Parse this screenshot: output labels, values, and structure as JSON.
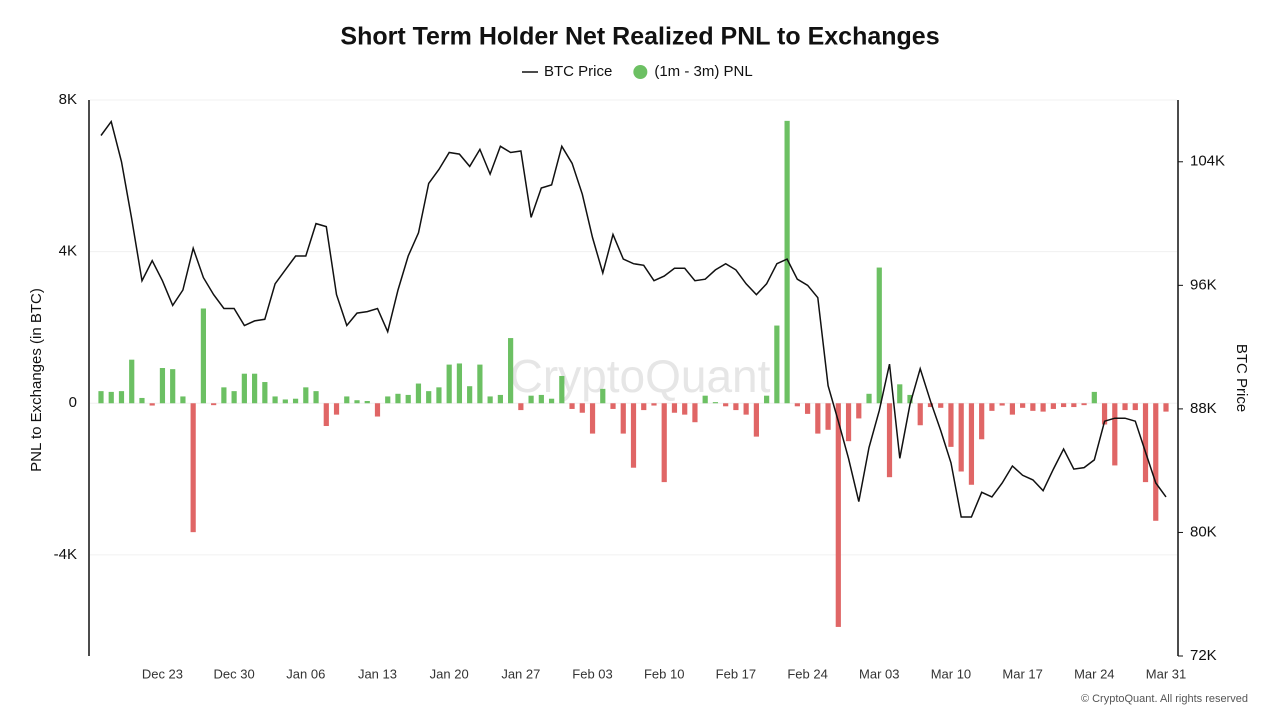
{
  "chart_data": {
    "type": "bar",
    "title": "Short Term Holder Net Realized PNL to Exchanges",
    "y_label": "PNL to Exchanges (in BTC)",
    "y2_label": "BTC Price",
    "watermark": "CryptoQuant",
    "footer": "© CryptoQuant. All rights reserved",
    "grid": true,
    "categories": [
      null,
      null,
      null,
      null,
      null,
      null,
      "Dec 23",
      null,
      null,
      null,
      null,
      null,
      null,
      "Dec 30",
      null,
      null,
      null,
      null,
      null,
      null,
      "Jan 06",
      null,
      null,
      null,
      null,
      null,
      null,
      "Jan 13",
      null,
      null,
      null,
      null,
      null,
      null,
      "Jan 20",
      null,
      null,
      null,
      null,
      null,
      null,
      "Jan 27",
      null,
      null,
      null,
      null,
      null,
      null,
      "Feb 03",
      null,
      null,
      null,
      null,
      null,
      null,
      "Feb 10",
      null,
      null,
      null,
      null,
      null,
      null,
      "Feb 17",
      null,
      null,
      null,
      null,
      null,
      null,
      "Feb 24",
      null,
      null,
      null,
      null,
      null,
      null,
      "Mar 03",
      null,
      null,
      null,
      null,
      null,
      null,
      "Mar 10",
      null,
      null,
      null,
      null,
      null,
      null,
      "Mar 17",
      null,
      null,
      null,
      null,
      null,
      null,
      "Mar 24",
      null,
      null,
      null,
      null,
      null,
      null,
      "Mar 31"
    ],
    "series": [
      {
        "name": "BTC Price",
        "type": "line",
        "axis": "y2",
        "color": "#111111",
        "values": [
          105700,
          106600,
          104000,
          100300,
          96300,
          97600,
          96300,
          94700,
          95700,
          98400,
          96500,
          95400,
          94500,
          94500,
          93400,
          93700,
          93800,
          96100,
          97000,
          97900,
          97900,
          100000,
          99800,
          95400,
          93400,
          94200,
          94300,
          94500,
          93000,
          95700,
          97900,
          99400,
          102600,
          103500,
          104600,
          104500,
          103700,
          104800,
          103200,
          105000,
          104600,
          104700,
          100400,
          102300,
          102500,
          105000,
          103900,
          101900,
          99100,
          96800,
          99300,
          97700,
          97400,
          97300,
          96300,
          96600,
          97100,
          97100,
          96300,
          96400,
          97000,
          97400,
          97000,
          96100,
          95400,
          96100,
          97400,
          97700,
          96400,
          96000,
          95200,
          89500,
          87200,
          84800,
          82000,
          85500,
          87900,
          90900,
          84800,
          88300,
          90600,
          88500,
          86600,
          84500,
          81000,
          81000,
          82600,
          82300,
          83200,
          84300,
          83700,
          83400,
          82700,
          84100,
          85400,
          84100,
          84200,
          84700,
          87200,
          87400,
          87400,
          87200,
          85200,
          83200,
          82300
        ]
      },
      {
        "name": "(1m - 3m) PNL",
        "type": "bar",
        "color": "#6cc063",
        "negative_color": "#e06666",
        "values": [
          320,
          300,
          320,
          1150,
          140,
          -60,
          930,
          900,
          180,
          -3400,
          2500,
          -50,
          420,
          320,
          780,
          780,
          560,
          180,
          100,
          120,
          420,
          320,
          -600,
          -300,
          180,
          80,
          60,
          -350,
          180,
          250,
          220,
          520,
          320,
          420,
          1020,
          1050,
          450,
          1020,
          180,
          220,
          1720,
          -180,
          200,
          220,
          120,
          720,
          -150,
          -250,
          -800,
          380,
          -150,
          -800,
          -1700,
          -180,
          -60,
          -2080,
          -250,
          -300,
          -500,
          200,
          30,
          -80,
          -180,
          -300,
          -880,
          200,
          2050,
          7450,
          -80,
          -280,
          -800,
          -700,
          -5900,
          -1000,
          -400,
          250,
          3580,
          -1950,
          500,
          220,
          -580,
          -100,
          -120,
          -1150,
          -1800,
          -2150,
          -950,
          -200,
          -60,
          -300,
          -120,
          -200,
          -220,
          -150,
          -100,
          -100,
          -50,
          300,
          -560,
          -1640,
          -180,
          -180,
          -2080,
          -3100,
          -220
        ]
      }
    ],
    "ylim": [
      -6667,
      8000
    ],
    "yticks": [
      {
        "value": -4000,
        "label": "-4K"
      },
      0,
      {
        "value": 4000,
        "label": "4K"
      },
      {
        "value": 8000,
        "label": "8K"
      }
    ],
    "y2lim": [
      72000,
      108000
    ],
    "y2ticks": [
      {
        "value": 72000,
        "label": "72K"
      },
      {
        "value": 80000,
        "label": "80K"
      },
      {
        "value": 88000,
        "label": "88K"
      },
      {
        "value": 96000,
        "label": "96K"
      },
      {
        "value": 104000,
        "label": "104K"
      }
    ]
  }
}
